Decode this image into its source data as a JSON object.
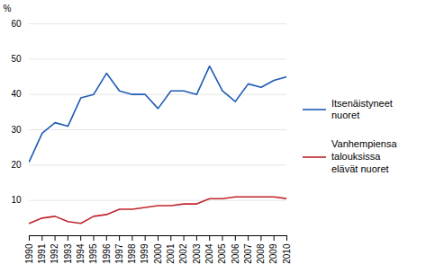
{
  "chart_data": {
    "type": "line",
    "x": [
      1990,
      1991,
      1992,
      1993,
      1994,
      1995,
      1996,
      1997,
      1998,
      1999,
      2000,
      2001,
      2002,
      2003,
      2004,
      2005,
      2006,
      2007,
      2008,
      2009,
      2010
    ],
    "xlim": [
      1990,
      2010
    ],
    "xticks": [
      1990,
      1991,
      1992,
      1993,
      1994,
      1995,
      1996,
      1997,
      1998,
      1999,
      2000,
      2001,
      2002,
      2003,
      2004,
      2005,
      2006,
      2007,
      2008,
      2009,
      2010
    ],
    "ylim": [
      0,
      60
    ],
    "yticks": [
      10,
      20,
      30,
      40,
      50,
      60
    ],
    "ylabel": "%",
    "grid": true,
    "legend": "right",
    "series": [
      {
        "name": "Itsenäistyneet\nnuoret",
        "color": "#1F5BB5",
        "values": [
          21,
          29,
          32,
          31,
          39,
          40,
          46,
          41,
          40,
          40,
          36,
          41,
          41,
          40,
          48,
          41,
          38,
          43,
          42,
          44,
          45
        ]
      },
      {
        "name": "Vanhempiensa\ntalouksissa\nelävät nuoret",
        "color": "#C0242C",
        "values": [
          3.5,
          5.0,
          5.5,
          4.0,
          3.5,
          5.5,
          6.0,
          7.5,
          7.5,
          8.0,
          8.5,
          8.5,
          9.0,
          9.0,
          10.5,
          10.5,
          11.0,
          11.0,
          11.0,
          11.0,
          10.5
        ]
      }
    ]
  }
}
